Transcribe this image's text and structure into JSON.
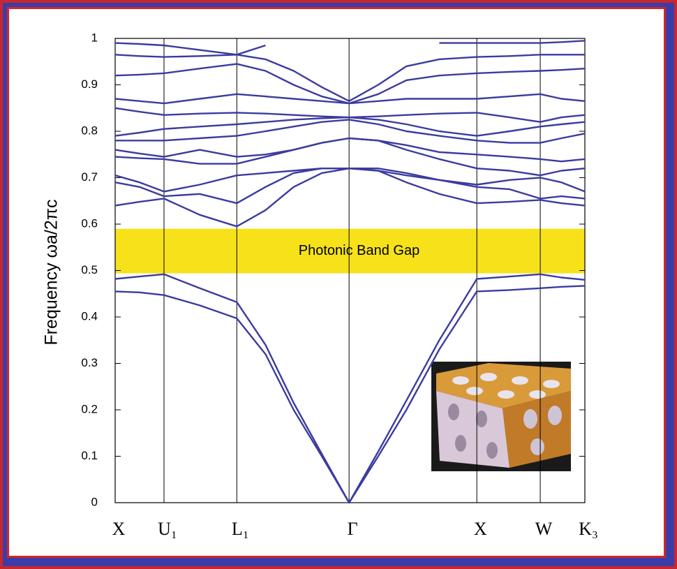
{
  "chart_data": {
    "type": "line",
    "ylabel": "Frequency ωa/2πc",
    "xlim": [
      0,
      1
    ],
    "xticks": [
      {
        "value": 0,
        "label": "X"
      },
      {
        "value": 0.104,
        "label": "U₁"
      },
      {
        "value": 0.259,
        "label": "L₁"
      },
      {
        "value": 0.498,
        "label": "Γ"
      },
      {
        "value": 0.77,
        "label": "X"
      },
      {
        "value": 0.905,
        "label": "W"
      },
      {
        "value": 1,
        "label": "K₃"
      }
    ],
    "ylim": [
      0,
      1
    ],
    "yticks": [
      0,
      0.1,
      0.2,
      0.3,
      0.4,
      0.5,
      0.6,
      0.7,
      0.8,
      0.9,
      1
    ],
    "color": "#3b3ba0",
    "band_gap": {
      "range": [
        0.494,
        0.59
      ],
      "label": "Photonic Band Gap",
      "color": "#f7e21a"
    },
    "x": [
      0,
      0.052,
      0.104,
      0.18,
      0.259,
      0.32,
      0.38,
      0.44,
      0.498,
      0.56,
      0.62,
      0.69,
      0.77,
      0.84,
      0.905,
      0.95,
      1
    ],
    "series": [
      {
        "values": [
          0.455,
          0.453,
          0.447,
          0.425,
          0.397,
          0.32,
          0.2,
          0.1,
          0,
          0.1,
          0.2,
          0.33,
          0.455,
          0.458,
          0.462,
          0.465,
          0.467
        ]
      },
      {
        "values": [
          0.482,
          0.487,
          0.492,
          0.462,
          0.432,
          0.34,
          0.215,
          0.105,
          0,
          0.11,
          0.22,
          0.35,
          0.482,
          0.487,
          0.492,
          0.485,
          0.48
        ]
      },
      {
        "values": [
          0.64,
          0.648,
          0.655,
          0.62,
          0.595,
          0.63,
          0.68,
          0.71,
          0.72,
          0.715,
          0.69,
          0.665,
          0.645,
          0.648,
          0.652,
          0.645,
          0.64
        ]
      },
      {
        "values": [
          0.69,
          0.68,
          0.66,
          0.665,
          0.645,
          0.68,
          0.71,
          0.72,
          0.72,
          0.72,
          0.71,
          0.695,
          0.68,
          0.675,
          0.655,
          0.66,
          0.655
        ]
      },
      {
        "values": [
          0.705,
          0.69,
          0.67,
          0.685,
          0.705,
          0.71,
          0.715,
          0.72,
          0.72,
          0.715,
          0.705,
          0.695,
          0.685,
          0.695,
          0.7,
          0.69,
          0.67
        ]
      },
      {
        "values": [
          0.745,
          0.742,
          0.74,
          0.73,
          0.73,
          0.745,
          0.76,
          0.775,
          0.785,
          0.78,
          0.76,
          0.74,
          0.72,
          0.715,
          0.705,
          0.715,
          0.72
        ]
      },
      {
        "values": [
          0.76,
          0.752,
          0.745,
          0.76,
          0.745,
          0.75,
          0.76,
          0.775,
          0.785,
          0.78,
          0.77,
          0.755,
          0.75,
          0.745,
          0.74,
          0.735,
          0.74
        ]
      },
      {
        "values": [
          0.78,
          0.78,
          0.78,
          0.785,
          0.79,
          0.8,
          0.81,
          0.82,
          0.825,
          0.815,
          0.8,
          0.79,
          0.78,
          0.775,
          0.775,
          0.785,
          0.795
        ]
      },
      {
        "values": [
          0.79,
          0.797,
          0.805,
          0.81,
          0.815,
          0.82,
          0.825,
          0.828,
          0.83,
          0.825,
          0.815,
          0.8,
          0.79,
          0.8,
          0.81,
          0.815,
          0.82
        ]
      },
      {
        "values": [
          0.85,
          0.842,
          0.835,
          0.838,
          0.84,
          0.838,
          0.835,
          0.832,
          0.83,
          0.832,
          0.835,
          0.838,
          0.84,
          0.83,
          0.82,
          0.83,
          0.835
        ]
      },
      {
        "values": [
          0.87,
          0.865,
          0.86,
          0.87,
          0.88,
          0.875,
          0.87,
          0.865,
          0.86,
          0.865,
          0.87,
          0.87,
          0.87,
          0.875,
          0.88,
          0.87,
          0.865
        ]
      },
      {
        "values": [
          0.92,
          0.922,
          0.925,
          0.935,
          0.945,
          0.93,
          0.9,
          0.875,
          0.86,
          0.88,
          0.91,
          0.92,
          0.925,
          0.928,
          0.93,
          0.932,
          0.935
        ]
      },
      {
        "values": [
          0.965,
          0.962,
          0.96,
          0.962,
          0.965,
          0.955,
          0.93,
          0.895,
          0.865,
          0.9,
          0.94,
          0.955,
          0.96,
          0.962,
          0.965,
          0.965,
          0.965
        ]
      },
      {
        "values": [
          0.99,
          0.988,
          0.985,
          0.975,
          0.965,
          0.985,
          null,
          null,
          null,
          null,
          null,
          0.99,
          0.99,
          0.99,
          0.99,
          0.992,
          0.995
        ]
      }
    ]
  }
}
